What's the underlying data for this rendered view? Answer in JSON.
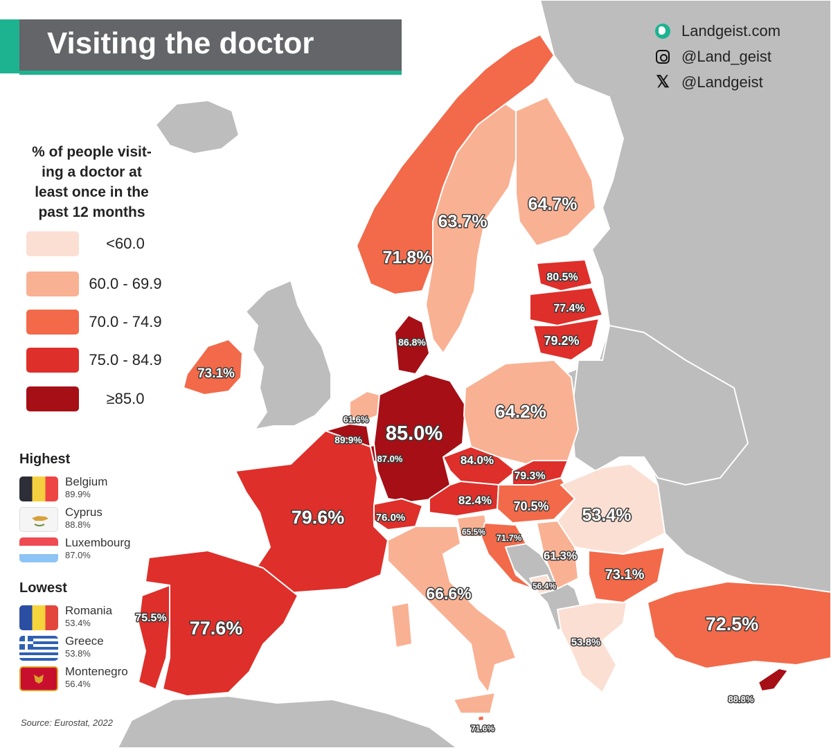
{
  "title": "Visiting the doctor",
  "branding": [
    {
      "icon": "globe-icon",
      "text": "Landgeist.com"
    },
    {
      "icon": "instagram-icon",
      "text": "@Land_geist"
    },
    {
      "icon": "x-logo-icon",
      "text": "@Landgeist"
    }
  ],
  "legend": {
    "title": "% of people visit-ing a doctor at least once in the past 12 months",
    "title_lines": [
      "% of people visit-",
      "ing a doctor at",
      "least once in the",
      "past 12 months"
    ],
    "bins": [
      {
        "label": "<60.0",
        "color": "#fbdfd3"
      },
      {
        "label": "60.0 - 69.9",
        "color": "#f9b193"
      },
      {
        "label": "70.0 - 74.9",
        "color": "#f26a4a"
      },
      {
        "label": "75.0 - 84.9",
        "color": "#de2f2a"
      },
      {
        "label": "≥85.0",
        "color": "#a50f15"
      }
    ]
  },
  "highest": {
    "heading": "Highest",
    "items": [
      {
        "country": "Belgium",
        "value": "89.9%",
        "flag": "belgium-flag"
      },
      {
        "country": "Cyprus",
        "value": "88.8%",
        "flag": "cyprus-flag"
      },
      {
        "country": "Luxembourg",
        "value": "87.0%",
        "flag": "luxembourg-flag"
      }
    ]
  },
  "lowest": {
    "heading": "Lowest",
    "items": [
      {
        "country": "Romania",
        "value": "53.4%",
        "flag": "romania-flag"
      },
      {
        "country": "Greece",
        "value": "53.8%",
        "flag": "greece-flag"
      },
      {
        "country": "Montenegro",
        "value": "56.4%",
        "flag": "montenegro-flag"
      }
    ]
  },
  "no_data_color": "#bdbdbd",
  "map_data": [
    {
      "country": "Norway",
      "value": 71.8,
      "label": "71.8%"
    },
    {
      "country": "Sweden",
      "value": 63.7,
      "label": "63.7%"
    },
    {
      "country": "Finland",
      "value": 64.7,
      "label": "64.7%"
    },
    {
      "country": "Estonia",
      "value": 80.5,
      "label": "80.5%"
    },
    {
      "country": "Latvia",
      "value": 77.4,
      "label": "77.4%"
    },
    {
      "country": "Lithuania",
      "value": 79.2,
      "label": "79.2%"
    },
    {
      "country": "Denmark",
      "value": 86.8,
      "label": "86.8%"
    },
    {
      "country": "Ireland",
      "value": 73.1,
      "label": "73.1%"
    },
    {
      "country": "Netherlands",
      "value": 61.6,
      "label": "61.6%"
    },
    {
      "country": "Belgium",
      "value": 89.9,
      "label": "89.9%"
    },
    {
      "country": "Luxembourg",
      "value": 87.0,
      "label": "87.0%"
    },
    {
      "country": "Germany",
      "value": 85.0,
      "label": "85.0%"
    },
    {
      "country": "Poland",
      "value": 64.2,
      "label": "64.2%"
    },
    {
      "country": "Czechia",
      "value": 84.0,
      "label": "84.0%"
    },
    {
      "country": "Slovakia",
      "value": 79.3,
      "label": "79.3%"
    },
    {
      "country": "Austria",
      "value": 82.4,
      "label": "82.4%"
    },
    {
      "country": "Hungary",
      "value": 70.5,
      "label": "70.5%"
    },
    {
      "country": "Switzerland",
      "value": 76.0,
      "label": "76.0%"
    },
    {
      "country": "France",
      "value": 79.6,
      "label": "79.6%"
    },
    {
      "country": "Slovenia",
      "value": 65.5,
      "label": "65.5%"
    },
    {
      "country": "Croatia",
      "value": 71.7,
      "label": "71.7%"
    },
    {
      "country": "Serbia",
      "value": 61.3,
      "label": "61.3%"
    },
    {
      "country": "Romania",
      "value": 53.4,
      "label": "53.4%"
    },
    {
      "country": "Bulgaria",
      "value": 73.1,
      "label": "73.1%"
    },
    {
      "country": "Montenegro",
      "value": 56.4,
      "label": "56.4%"
    },
    {
      "country": "Greece",
      "value": 53.8,
      "label": "53.8%"
    },
    {
      "country": "Italy",
      "value": 66.6,
      "label": "66.6%"
    },
    {
      "country": "Portugal",
      "value": 75.5,
      "label": "75.5%"
    },
    {
      "country": "Spain",
      "value": 77.6,
      "label": "77.6%"
    },
    {
      "country": "Turkey",
      "value": 72.5,
      "label": "72.5%"
    },
    {
      "country": "Cyprus",
      "value": 88.8,
      "label": "88.8%"
    },
    {
      "country": "Malta",
      "value": 71.6,
      "label": "71.6%"
    }
  ],
  "source": "Source: Eurostat, 2022"
}
